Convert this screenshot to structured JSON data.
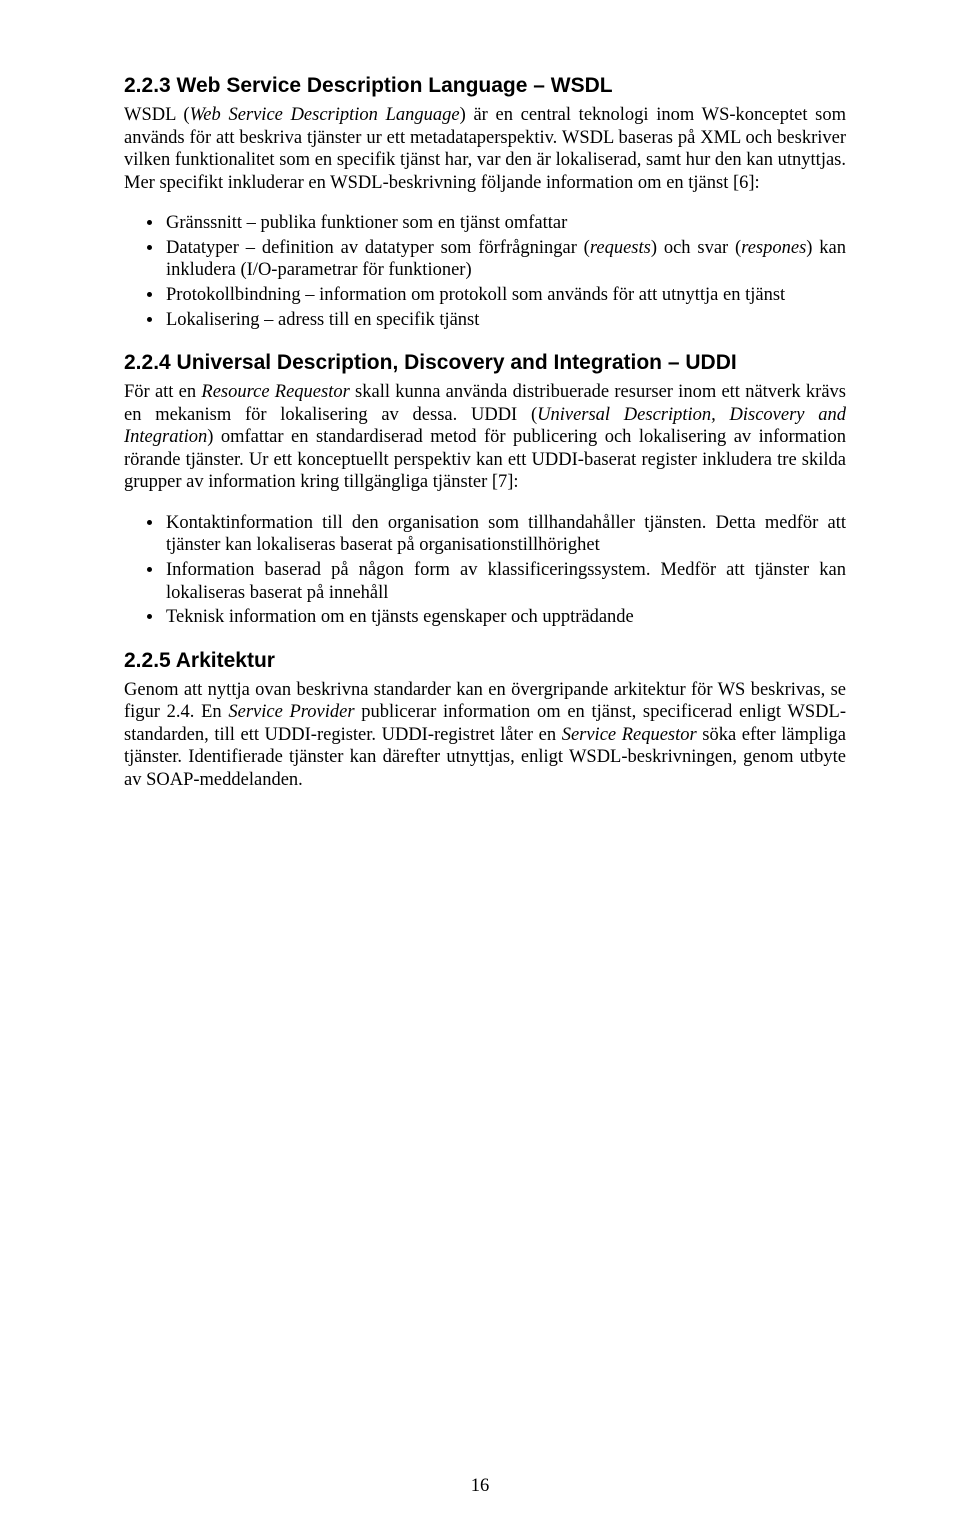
{
  "page_number": "16",
  "sections": [
    {
      "heading": "2.2.3 Web Service Description Language – WSDL",
      "paragraphs": [
        {
          "runs": [
            {
              "t": "WSDL (",
              "i": false
            },
            {
              "t": "Web Service Description Language",
              "i": true
            },
            {
              "t": ") är en central teknologi inom WS-konceptet som används för att beskriva tjänster ur ett metadataperspektiv. WSDL baseras på XML och beskriver vilken funktionalitet som en specifik tjänst har, var den är lokaliserad, samt hur den kan utnyttjas. Mer specifikt inkluderar en WSDL-beskrivning följande information om en tjänst [6]:",
              "i": false
            }
          ]
        }
      ],
      "bullets": [
        [
          {
            "t": "Gränssnitt – publika funktioner som en tjänst omfattar",
            "i": false
          }
        ],
        [
          {
            "t": "Datatyper – definition av datatyper som förfrågningar (",
            "i": false
          },
          {
            "t": "requests",
            "i": true
          },
          {
            "t": ") och svar (",
            "i": false
          },
          {
            "t": "respones",
            "i": true
          },
          {
            "t": ") kan inkludera (I/O-parametrar för funktioner)",
            "i": false
          }
        ],
        [
          {
            "t": "Protokollbindning – information om protokoll som används för att utnyttja en tjänst",
            "i": false
          }
        ],
        [
          {
            "t": "Lokalisering – adress till en specifik tjänst",
            "i": false
          }
        ]
      ]
    },
    {
      "heading": "2.2.4 Universal Description, Discovery and Integration – UDDI",
      "paragraphs": [
        {
          "runs": [
            {
              "t": "För att en ",
              "i": false
            },
            {
              "t": "Resource Requestor",
              "i": true
            },
            {
              "t": " skall kunna använda distribuerade resurser inom ett nätverk krävs en mekanism för lokalisering av dessa. UDDI (",
              "i": false
            },
            {
              "t": "Universal Description, Discovery and Integration",
              "i": true
            },
            {
              "t": ") omfattar en standardiserad metod för publicering och lokalisering av information rörande tjänster. Ur ett konceptuellt perspektiv kan ett UDDI-baserat register inkludera tre skilda grupper av information kring tillgängliga tjänster [7]:",
              "i": false
            }
          ]
        }
      ],
      "bullets": [
        [
          {
            "t": "Kontaktinformation till den organisation som tillhandahåller tjänsten. Detta medför att tjänster kan lokaliseras baserat på organisationstillhörighet",
            "i": false
          }
        ],
        [
          {
            "t": "Information baserad på någon form av klassificeringssystem. Medför att tjänster kan lokaliseras baserat på innehåll",
            "i": false
          }
        ],
        [
          {
            "t": "Teknisk information om en tjänsts egenskaper och uppträdande",
            "i": false
          }
        ]
      ]
    },
    {
      "heading": "2.2.5 Arkitektur",
      "paragraphs": [
        {
          "runs": [
            {
              "t": "Genom att nyttja ovan beskrivna standarder kan en övergripande arkitektur för WS beskrivas, se figur 2.4. En ",
              "i": false
            },
            {
              "t": "Service Provider",
              "i": true
            },
            {
              "t": " publicerar information om en tjänst, specificerad enligt WSDL-standarden, till ett UDDI-register. UDDI-registret låter en ",
              "i": false
            },
            {
              "t": "Service Requestor",
              "i": true
            },
            {
              "t": " söka efter lämpliga tjänster. Identifierade tjänster kan därefter utnyttjas, enligt WSDL-beskrivningen, genom utbyte av SOAP-meddelanden.",
              "i": false
            }
          ]
        }
      ],
      "bullets": []
    }
  ]
}
